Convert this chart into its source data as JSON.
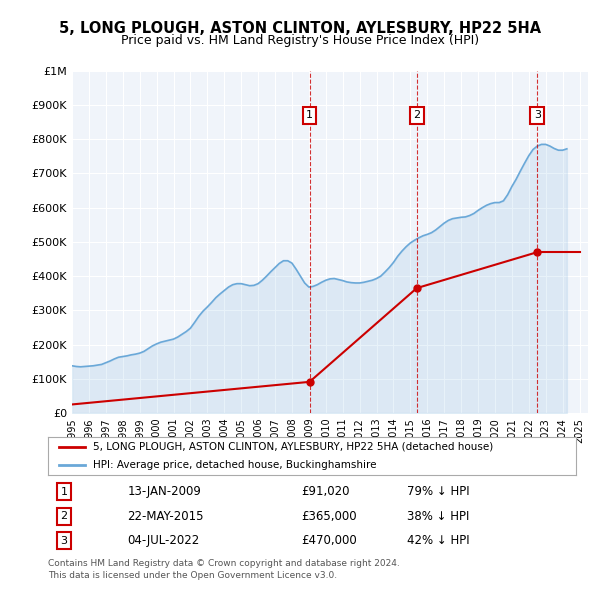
{
  "title": "5, LONG PLOUGH, ASTON CLINTON, AYLESBURY, HP22 5HA",
  "subtitle": "Price paid vs. HM Land Registry's House Price Index (HPI)",
  "legend_house": "5, LONG PLOUGH, ASTON CLINTON, AYLESBURY, HP22 5HA (detached house)",
  "legend_hpi": "HPI: Average price, detached house, Buckinghamshire",
  "footer1": "Contains HM Land Registry data © Crown copyright and database right 2024.",
  "footer2": "This data is licensed under the Open Government Licence v3.0.",
  "sales": [
    {
      "num": 1,
      "date": "13-JAN-2009",
      "price": 91020,
      "pct": "79% ↓ HPI",
      "year": 2009.04
    },
    {
      "num": 2,
      "date": "22-MAY-2015",
      "price": 365000,
      "pct": "38% ↓ HPI",
      "year": 2015.38
    },
    {
      "num": 3,
      "date": "04-JUL-2022",
      "price": 470000,
      "pct": "42% ↓ HPI",
      "year": 2022.5
    }
  ],
  "hpi_color": "#6aa8d8",
  "price_color": "#cc0000",
  "marker_color": "#cc0000",
  "dashed_color": "#cc0000",
  "background_color": "#ffffff",
  "plot_bg_color": "#f0f4fa",
  "ylim": [
    0,
    1000000
  ],
  "xlim_start": 1995,
  "xlim_end": 2025.5,
  "hpi_data": {
    "years": [
      1995,
      1995.25,
      1995.5,
      1995.75,
      1996,
      1996.25,
      1996.5,
      1996.75,
      1997,
      1997.25,
      1997.5,
      1997.75,
      1998,
      1998.25,
      1998.5,
      1998.75,
      1999,
      1999.25,
      1999.5,
      1999.75,
      2000,
      2000.25,
      2000.5,
      2000.75,
      2001,
      2001.25,
      2001.5,
      2001.75,
      2002,
      2002.25,
      2002.5,
      2002.75,
      2003,
      2003.25,
      2003.5,
      2003.75,
      2004,
      2004.25,
      2004.5,
      2004.75,
      2005,
      2005.25,
      2005.5,
      2005.75,
      2006,
      2006.25,
      2006.5,
      2006.75,
      2007,
      2007.25,
      2007.5,
      2007.75,
      2008,
      2008.25,
      2008.5,
      2008.75,
      2009,
      2009.25,
      2009.5,
      2009.75,
      2010,
      2010.25,
      2010.5,
      2010.75,
      2011,
      2011.25,
      2011.5,
      2011.75,
      2012,
      2012.25,
      2012.5,
      2012.75,
      2013,
      2013.25,
      2013.5,
      2013.75,
      2014,
      2014.25,
      2014.5,
      2014.75,
      2015,
      2015.25,
      2015.5,
      2015.75,
      2016,
      2016.25,
      2016.5,
      2016.75,
      2017,
      2017.25,
      2017.5,
      2017.75,
      2018,
      2018.25,
      2018.5,
      2018.75,
      2019,
      2019.25,
      2019.5,
      2019.75,
      2020,
      2020.25,
      2020.5,
      2020.75,
      2021,
      2021.25,
      2021.5,
      2021.75,
      2022,
      2022.25,
      2022.5,
      2022.75,
      2023,
      2023.25,
      2023.5,
      2023.75,
      2024,
      2024.25
    ],
    "values": [
      138000,
      136000,
      135000,
      136000,
      137000,
      138000,
      140000,
      142000,
      147000,
      152000,
      158000,
      163000,
      165000,
      167000,
      170000,
      172000,
      175000,
      180000,
      188000,
      196000,
      202000,
      207000,
      210000,
      213000,
      216000,
      222000,
      230000,
      238000,
      248000,
      265000,
      283000,
      298000,
      310000,
      323000,
      337000,
      348000,
      358000,
      368000,
      375000,
      378000,
      378000,
      375000,
      372000,
      373000,
      378000,
      388000,
      400000,
      413000,
      425000,
      437000,
      445000,
      445000,
      438000,
      420000,
      400000,
      380000,
      368000,
      370000,
      375000,
      382000,
      388000,
      392000,
      393000,
      390000,
      387000,
      383000,
      381000,
      380000,
      380000,
      382000,
      385000,
      388000,
      393000,
      400000,
      412000,
      425000,
      440000,
      458000,
      473000,
      486000,
      497000,
      505000,
      512000,
      518000,
      522000,
      527000,
      535000,
      545000,
      555000,
      563000,
      568000,
      570000,
      572000,
      573000,
      577000,
      583000,
      592000,
      600000,
      607000,
      612000,
      615000,
      615000,
      620000,
      638000,
      662000,
      683000,
      707000,
      730000,
      752000,
      770000,
      780000,
      785000,
      785000,
      780000,
      773000,
      768000,
      768000,
      772000
    ]
  },
  "price_data": {
    "years": [
      1995,
      2009.04,
      2015.38,
      2022.5,
      2025
    ],
    "values": [
      25000,
      91020,
      365000,
      470000,
      470000
    ]
  }
}
